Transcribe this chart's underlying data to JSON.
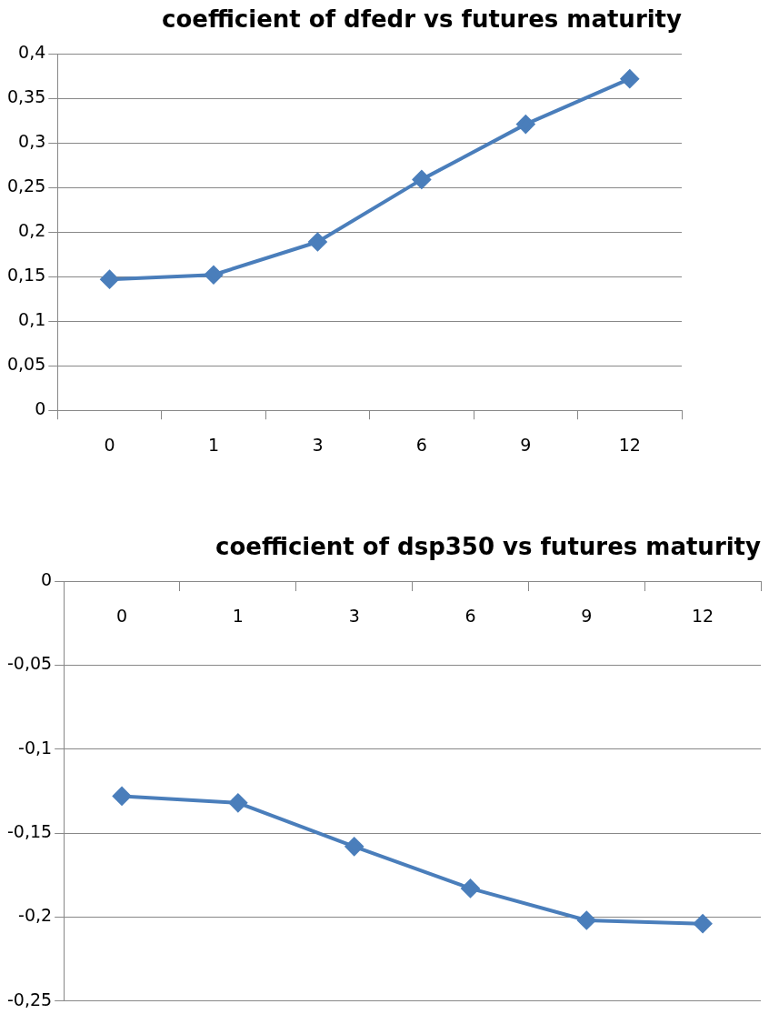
{
  "chart_data": [
    {
      "type": "line",
      "title": "coefficient of dfedr vs futures maturity",
      "categories": [
        "0",
        "1",
        "3",
        "6",
        "9",
        "12"
      ],
      "series": [
        {
          "color": "#4a7ebb",
          "values": [
            0.147,
            0.152,
            0.189,
            0.259,
            0.321,
            0.372
          ]
        }
      ],
      "ylim": [
        0,
        0.4
      ],
      "yticks": [
        {
          "value": 0,
          "label": "0"
        },
        {
          "value": 0.05,
          "label": "0,05"
        },
        {
          "value": 0.1,
          "label": "0,1"
        },
        {
          "value": 0.15,
          "label": "0,15"
        },
        {
          "value": 0.2,
          "label": "0,2"
        },
        {
          "value": 0.25,
          "label": "0,25"
        },
        {
          "value": 0.3,
          "label": "0,3"
        },
        {
          "value": 0.35,
          "label": "0,35"
        },
        {
          "value": 0.4,
          "label": "0,4"
        }
      ],
      "grid": "y",
      "legend": false,
      "marker": "diamond",
      "line_style": "solid"
    },
    {
      "type": "line",
      "title": "coefficient of dsp350 vs futures maturity",
      "categories": [
        "0",
        "1",
        "3",
        "6",
        "9",
        "12"
      ],
      "series": [
        {
          "color": "#4a7ebb",
          "values": [
            -0.128,
            -0.132,
            -0.158,
            -0.183,
            -0.202,
            -0.204
          ]
        }
      ],
      "ylim": [
        -0.25,
        0
      ],
      "yticks": [
        {
          "value": -0.25,
          "label": "-0,25"
        },
        {
          "value": -0.2,
          "label": "-0,2"
        },
        {
          "value": -0.15,
          "label": "-0,15"
        },
        {
          "value": -0.1,
          "label": "-0,1"
        },
        {
          "value": -0.05,
          "label": "-0,05"
        },
        {
          "value": 0,
          "label": "0"
        }
      ],
      "grid": "y",
      "legend": false,
      "marker": "diamond",
      "line_style": "solid"
    }
  ]
}
